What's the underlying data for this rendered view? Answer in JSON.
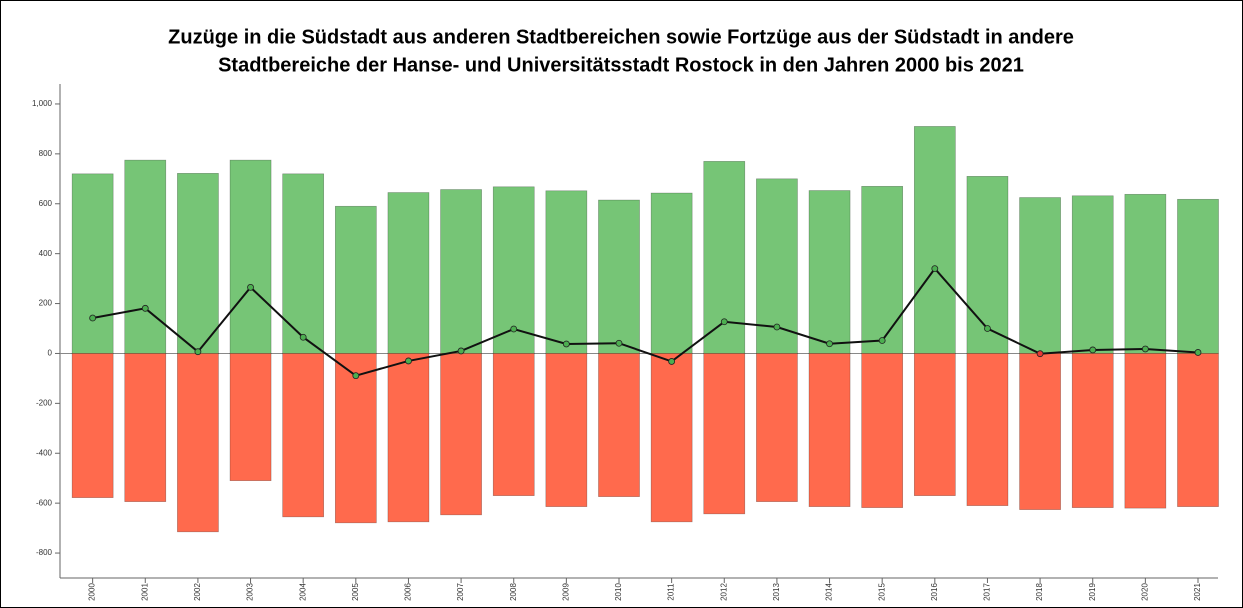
{
  "chart_data": {
    "type": "bar",
    "title": [
      "Zuzüge in die Südstadt aus anderen Stadtbereichen sowie Fortzüge aus der Südstadt in andere",
      "Stadtbereiche der Hanse- und Universitätsstadt Rostock in den Jahren 2000 bis 2021"
    ],
    "categories": [
      "2000",
      "2001",
      "2002",
      "2003",
      "2004",
      "2005",
      "2006",
      "2007",
      "2008",
      "2009",
      "2010",
      "2011",
      "2012",
      "2013",
      "2014",
      "2015",
      "2016",
      "2017",
      "2018",
      "2019",
      "2020",
      "2021"
    ],
    "series": [
      {
        "type": "bar",
        "color": "#76c576",
        "values": [
          720,
          775,
          722,
          775,
          720,
          590,
          645,
          657,
          668,
          652,
          615,
          643,
          770,
          700,
          653,
          670,
          910,
          710,
          625,
          632,
          638,
          618
        ]
      },
      {
        "type": "bar",
        "color": "#ff6a4d",
        "values": [
          -578,
          -594,
          -715,
          -510,
          -655,
          -679,
          -675,
          -647,
          -570,
          -614,
          -574,
          -675,
          -643,
          -594,
          -614,
          -618,
          -570,
          -610,
          -626,
          -618,
          -620,
          -614
        ]
      },
      {
        "type": "line",
        "color": "#111111",
        "marker_colors": [
          "#4caf50",
          "#4caf50",
          "#4caf50",
          "#4caf50",
          "#4caf50",
          "#4caf50",
          "#4caf50",
          "#4caf50",
          "#4caf50",
          "#4caf50",
          "#4caf50",
          "#4caf50",
          "#4caf50",
          "#4caf50",
          "#4caf50",
          "#4caf50",
          "#4caf50",
          "#4caf50",
          "#e53935",
          "#4caf50",
          "#4caf50",
          "#4caf50"
        ],
        "values": [
          142,
          181,
          7,
          265,
          65,
          -89,
          -30,
          10,
          98,
          38,
          41,
          -32,
          127,
          106,
          39,
          52,
          340,
          100,
          -1,
          14,
          18,
          4
        ]
      }
    ],
    "ylim": [
      -900,
      1080
    ],
    "yticks": [
      -800,
      -600,
      -400,
      -200,
      0,
      200,
      400,
      600,
      800,
      {
        "value": 1000,
        "label": "1,000"
      }
    ]
  }
}
